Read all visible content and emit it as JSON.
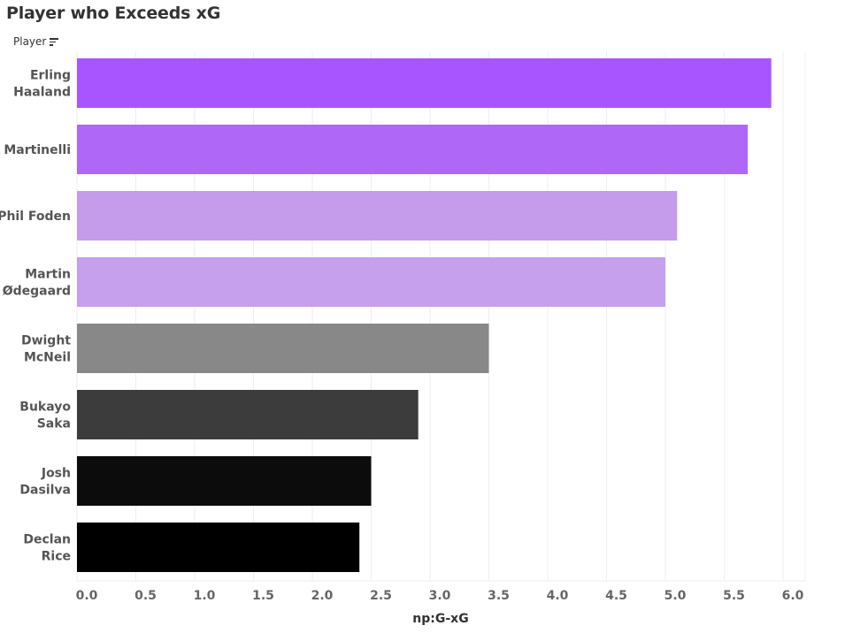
{
  "title": "Player who Exceeds xG",
  "field_label": "Player",
  "chart_data": {
    "type": "bar",
    "orientation": "horizontal",
    "title": "Player who Exceeds xG",
    "ylabel": "Player",
    "xlabel": "np:G-xG",
    "xlim": [
      0,
      6.2
    ],
    "ticks": [
      "0.0",
      "0.5",
      "1.0",
      "1.5",
      "2.0",
      "2.5",
      "3.0",
      "3.5",
      "4.0",
      "4.5",
      "5.0",
      "5.5",
      "6.0"
    ],
    "grid": "vertical",
    "categories": [
      [
        "Erling",
        "Haaland"
      ],
      [
        "Martinelli"
      ],
      [
        "Phil Foden"
      ],
      [
        "Martin",
        "Ødegaard"
      ],
      [
        "Dwight",
        "McNeil"
      ],
      [
        "Bukayo",
        "Saka"
      ],
      [
        "Josh",
        "Dasilva"
      ],
      [
        "Declan",
        "Rice"
      ]
    ],
    "values": [
      5.9,
      5.7,
      5.1,
      5.0,
      3.5,
      2.9,
      2.5,
      2.4
    ],
    "colors": [
      "#a855ff",
      "#ae67f7",
      "#c59cec",
      "#c69fed",
      "#888888",
      "#3c3c3c",
      "#0c0c0c",
      "#000000"
    ]
  }
}
